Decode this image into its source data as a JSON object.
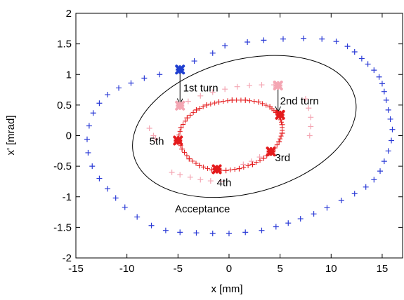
{
  "chart_data": {
    "type": "scatter",
    "title": "",
    "xlabel": "x [mm]",
    "ylabel": "x' [mrad]",
    "xlim": [
      -15,
      17
    ],
    "ylim": [
      -2,
      2
    ],
    "xticks": [
      "-15",
      "-10",
      "-5",
      "0",
      "5",
      "10",
      "15"
    ],
    "yticks": [
      "-2",
      "-1.5",
      "-1",
      "-0.5",
      "0",
      "0.5",
      "1",
      "1.5",
      "2"
    ],
    "grid": false,
    "legend": "none",
    "colors": {
      "outer": "#2b3bd6",
      "inner": "#e41a1c",
      "ghost": "#f4a6b3",
      "injection": "#1f3fd0",
      "turn_marker": "#e41a1c",
      "ghost_marker": "#f4a6b3",
      "acceptance": "#000000"
    },
    "series": [
      {
        "marker": "plus",
        "points": [
          [
            -4.8,
            1.08
          ],
          [
            -3.4,
            1.22
          ],
          [
            -1.6,
            1.35
          ],
          [
            -0.4,
            1.47
          ],
          [
            1.8,
            1.53
          ],
          [
            3.4,
            1.56
          ],
          [
            5.3,
            1.58
          ],
          [
            7.3,
            1.59
          ],
          [
            9.1,
            1.58
          ],
          [
            10.5,
            1.54
          ],
          [
            11.6,
            1.46
          ],
          [
            12.3,
            1.37
          ],
          [
            13.0,
            1.26
          ],
          [
            13.6,
            1.17
          ],
          [
            14.2,
            1.07
          ],
          [
            14.7,
            0.96
          ],
          [
            15.0,
            0.85
          ],
          [
            15.2,
            0.72
          ],
          [
            15.4,
            0.58
          ],
          [
            15.6,
            0.42
          ],
          [
            15.8,
            0.27
          ],
          [
            16.0,
            0.1
          ],
          [
            15.9,
            -0.08
          ],
          [
            15.6,
            -0.25
          ],
          [
            15.2,
            -0.42
          ],
          [
            14.8,
            -0.58
          ],
          [
            14.2,
            -0.72
          ],
          [
            13.4,
            -0.84
          ],
          [
            12.3,
            -0.95
          ],
          [
            11.0,
            -1.06
          ],
          [
            9.6,
            -1.18
          ],
          [
            8.3,
            -1.28
          ],
          [
            7.0,
            -1.36
          ],
          [
            5.8,
            -1.43
          ],
          [
            4.6,
            -1.49
          ],
          [
            3.2,
            -1.55
          ],
          [
            1.6,
            -1.58
          ],
          [
            0.0,
            -1.6
          ],
          [
            -1.6,
            -1.6
          ],
          [
            -3.2,
            -1.59
          ],
          [
            -4.8,
            -1.58
          ],
          [
            -6.2,
            -1.55
          ],
          [
            -7.6,
            -1.47
          ],
          [
            -9.0,
            -1.33
          ],
          [
            -10.2,
            -1.17
          ],
          [
            -11.1,
            -1.02
          ],
          [
            -11.9,
            -0.87
          ],
          [
            -12.7,
            -0.7
          ],
          [
            -13.4,
            -0.5
          ],
          [
            -13.8,
            -0.28
          ],
          [
            -13.9,
            -0.06
          ],
          [
            -13.7,
            0.16
          ],
          [
            -13.3,
            0.37
          ],
          [
            -12.7,
            0.53
          ],
          [
            -11.9,
            0.67
          ],
          [
            -10.8,
            0.78
          ],
          [
            -9.6,
            0.86
          ],
          [
            -8.3,
            0.94
          ],
          [
            -6.8,
            1.0
          ]
        ]
      },
      {
        "marker": "plus",
        "points": [
          [
            -5.0,
            -0.05
          ],
          [
            -4.7,
            0.13
          ],
          [
            -4.1,
            0.29
          ],
          [
            -3.2,
            0.42
          ],
          [
            -2.2,
            0.5
          ],
          [
            -1.0,
            0.55
          ],
          [
            0.3,
            0.58
          ],
          [
            1.6,
            0.58
          ],
          [
            2.9,
            0.55
          ],
          [
            4.0,
            0.47
          ],
          [
            4.6,
            0.38
          ],
          [
            5.0,
            0.3
          ],
          [
            5.2,
            0.18
          ],
          [
            5.2,
            0.04
          ],
          [
            4.9,
            -0.1
          ],
          [
            4.3,
            -0.25
          ],
          [
            3.4,
            -0.37
          ],
          [
            2.3,
            -0.47
          ],
          [
            1.0,
            -0.54
          ],
          [
            -0.3,
            -0.57
          ],
          [
            -1.7,
            -0.56
          ],
          [
            -2.9,
            -0.49
          ],
          [
            -3.9,
            -0.38
          ],
          [
            -4.6,
            -0.22
          ]
        ]
      },
      {
        "marker": "plus",
        "points": [
          [
            -4.7,
            0.5
          ],
          [
            -4.0,
            0.56
          ],
          [
            -2.8,
            0.65
          ],
          [
            -1.6,
            0.71
          ],
          [
            -0.4,
            0.76
          ],
          [
            0.8,
            0.8
          ],
          [
            2.0,
            0.82
          ],
          [
            3.2,
            0.83
          ],
          [
            4.4,
            0.83
          ],
          [
            7.5,
            0.6
          ],
          [
            7.8,
            0.45
          ],
          [
            8.0,
            0.3
          ],
          [
            8.0,
            0.15
          ],
          [
            7.9,
            0.0
          ],
          [
            3.0,
            -0.35
          ],
          [
            2.2,
            -0.42
          ],
          [
            1.4,
            -0.47
          ],
          [
            -7.8,
            0.12
          ],
          [
            -7.4,
            0.0
          ],
          [
            -7.2,
            -0.05
          ],
          [
            -5.6,
            -0.6
          ],
          [
            -4.8,
            -0.64
          ],
          [
            -3.8,
            -0.68
          ],
          [
            -2.8,
            -0.72
          ],
          [
            -1.8,
            -0.74
          ],
          [
            -0.8,
            -0.75
          ]
        ]
      }
    ],
    "highlight_points": [
      {
        "role": "injection",
        "x": -4.8,
        "y": 1.08
      },
      {
        "role": "turn",
        "x": 5.0,
        "y": 0.34
      },
      {
        "role": "turn",
        "x": 4.1,
        "y": -0.26
      },
      {
        "role": "turn",
        "x": -1.2,
        "y": -0.55
      },
      {
        "role": "turn",
        "x": -5.0,
        "y": -0.08
      },
      {
        "role": "ghost",
        "x": -4.8,
        "y": 0.49
      },
      {
        "role": "ghost",
        "x": 4.8,
        "y": 0.82
      }
    ],
    "acceptance_ellipse": {
      "cx": 1.5,
      "cy": 0.15,
      "rx": 11.2,
      "ry": 0.95,
      "angle_deg": 15
    },
    "annotations": [
      {
        "text": "1st turn",
        "x": -4.5,
        "y": 0.78
      },
      {
        "text": "2nd turn",
        "x": 5.0,
        "y": 0.57
      },
      {
        "text": "3rd",
        "x": 4.5,
        "y": -0.36
      },
      {
        "text": "4th",
        "x": -1.2,
        "y": -0.77
      },
      {
        "text": "5th",
        "x": -7.8,
        "y": -0.09
      },
      {
        "text": "Acceptance",
        "x": -5.3,
        "y": -1.2
      }
    ],
    "arrows": [
      {
        "from": [
          -4.8,
          1.08
        ],
        "to": [
          -4.8,
          0.53
        ]
      },
      {
        "from": [
          4.8,
          0.82
        ],
        "to": [
          4.8,
          0.4
        ]
      }
    ]
  }
}
